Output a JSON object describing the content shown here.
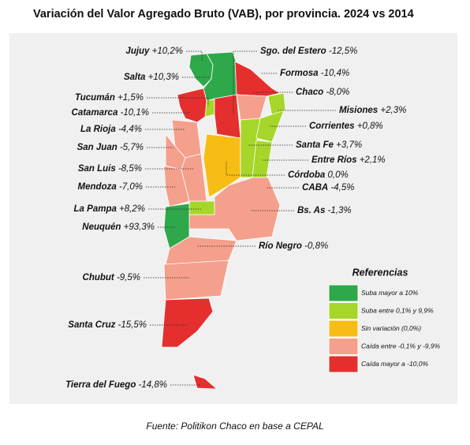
{
  "title": "Variación del Valor Agregado Bruto (VAB), por provincia. 2024 vs 2014",
  "provinces": [
    {
      "name": "Jujuy",
      "change": "+10,2%"
    },
    {
      "name": "Salta",
      "change": "+10,3%"
    },
    {
      "name": "Tucumán",
      "change": "+1,5%"
    },
    {
      "name": "Catamarca",
      "change": "-10,1%"
    },
    {
      "name": "La Rioja",
      "change": "-4,4%"
    },
    {
      "name": "San Juan",
      "change": "-5,7%"
    },
    {
      "name": "San Luis",
      "change": "-8,5%"
    },
    {
      "name": "Mendoza",
      "change": "-7,0%"
    },
    {
      "name": "La Pampa",
      "change": "+8,2%"
    },
    {
      "name": "Neuquén",
      "change": "+93,3%"
    },
    {
      "name": "Chubut",
      "change": "-9,5%"
    },
    {
      "name": "Santa Cruz",
      "change": "-15,5%"
    },
    {
      "name": "Tierra del Fuego",
      "change": "-14,8%"
    },
    {
      "name": "Sgo. del Estero",
      "change": "-12,5%"
    },
    {
      "name": "Formosa",
      "change": "-10,4%"
    },
    {
      "name": "Chaco",
      "change": "-8,0%"
    },
    {
      "name": "Misiones",
      "change": "+2,3%"
    },
    {
      "name": "Corrientes",
      "change": "+0,8%"
    },
    {
      "name": "Santa Fe",
      "change": "+3,7%"
    },
    {
      "name": "Entre Ríos",
      "change": "+2,1%"
    },
    {
      "name": "Córdoba",
      "change": "0,0%"
    },
    {
      "name": "CABA",
      "change": "-4,5%"
    },
    {
      "name": "Bs. As",
      "change": "-1,3%"
    },
    {
      "name": "Río Negro",
      "change": "-0,8%"
    }
  ],
  "legend": {
    "title": "Referencias",
    "items": [
      {
        "label": "Suba mayor a 10%",
        "color": "#2ea84a"
      },
      {
        "label": "Suba entre 0,1% y 9,9%",
        "color": "#a6d62a"
      },
      {
        "label": "Sin variación (0,0%)",
        "color": "#f7bd14"
      },
      {
        "label": "Caída entre -0,1% y -9,9%",
        "color": "#f4a08c"
      },
      {
        "label": "Caída mayor a -10,0%",
        "color": "#e52f2f"
      }
    ]
  },
  "source": "Fuente: Politikon Chaco en base a CEPAL"
}
